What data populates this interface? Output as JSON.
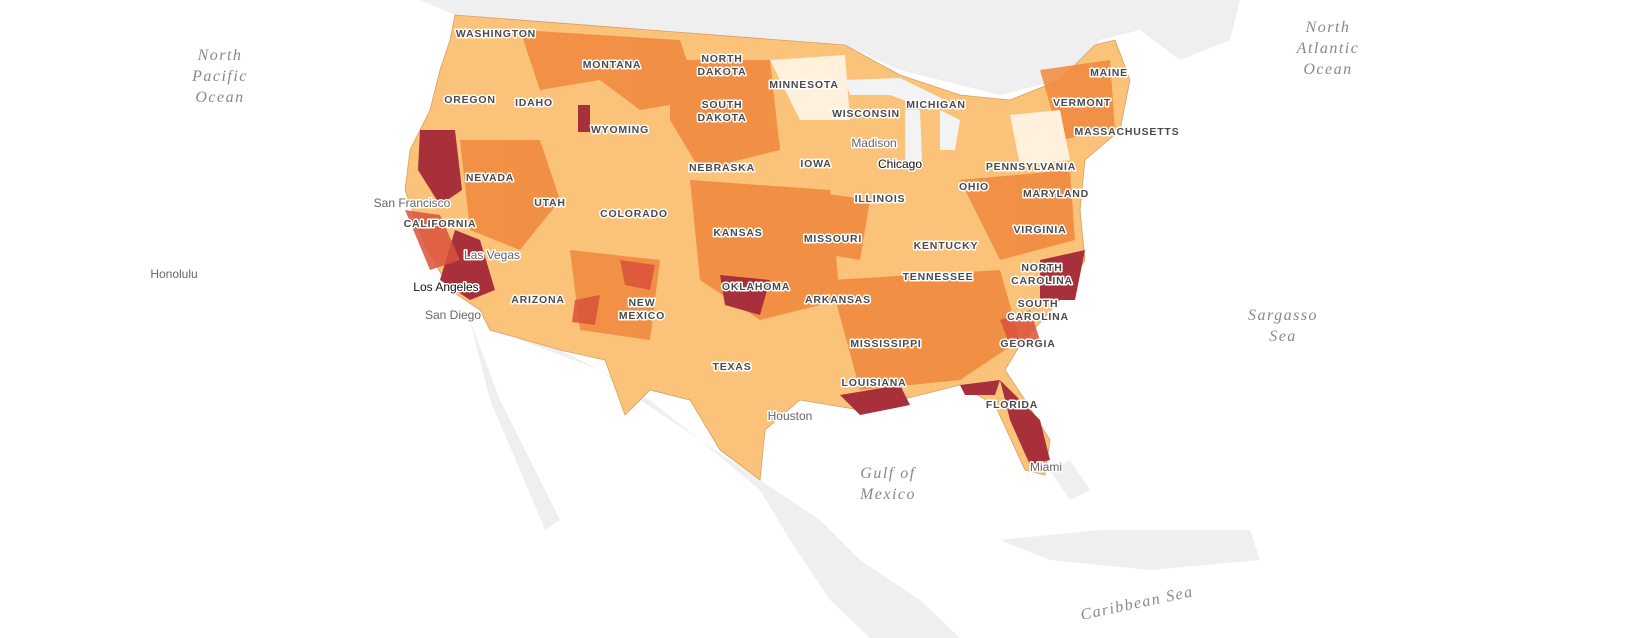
{
  "oceans": [
    {
      "lines": [
        "North",
        "Pacific",
        "Ocean"
      ]
    },
    {
      "lines": [
        "North",
        "Atlantic",
        "Ocean"
      ]
    },
    {
      "lines": [
        "Sargasso",
        "Sea"
      ]
    },
    {
      "lines": [
        "Gulf of",
        "Mexico"
      ]
    },
    {
      "lines": [
        "Caribbean Sea"
      ]
    }
  ],
  "states": [
    "WASHINGTON",
    "MONTANA",
    "NORTH",
    "DAKOTA",
    "MINNESOTA",
    "MAINE",
    "OREGON",
    "IDAHO",
    "SOUTH",
    "DAKOTA",
    "WISCONSIN",
    "MICHIGAN",
    "VERMONT",
    "MASSACHUSETTS",
    "WYOMING",
    "IOWA",
    "NEBRASKA",
    "PENNSYLVANIA",
    "NEVADA",
    "OHIO",
    "ILLINOIS",
    "MARYLAND",
    "UTAH",
    "COLORADO",
    "CALIFORNIA",
    "KANSAS",
    "MISSOURI",
    "KENTUCKY",
    "VIRGINIA",
    "NORTH",
    "CAROLINA",
    "TENNESSEE",
    "OKLAHOMA",
    "ARIZONA",
    "NEW",
    "MEXICO",
    "ARKANSAS",
    "SOUTH",
    "CAROLINA",
    "MISSISSIPPI",
    "GEORGIA",
    "TEXAS",
    "LOUISIANA",
    "FLORIDA"
  ],
  "cities": [
    "Madison",
    "Chicago",
    "San Francisco",
    "Las Vegas",
    "Honolulu",
    "Los Angeles",
    "San Diego",
    "Houston",
    "Miami"
  ]
}
